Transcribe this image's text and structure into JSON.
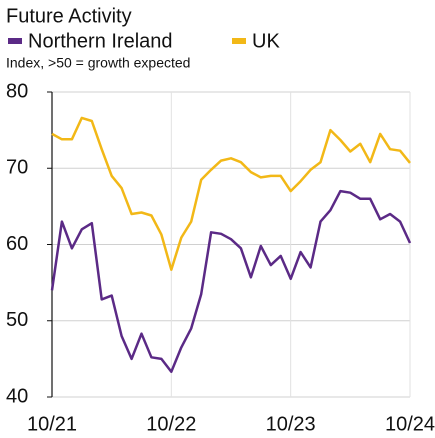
{
  "chart_data": {
    "type": "line",
    "title": "Future Activity",
    "subtitle": "Index, >50 = growth expected",
    "categories": [
      "10/21",
      null,
      null,
      null,
      null,
      null,
      null,
      null,
      null,
      null,
      null,
      null,
      "10/22",
      null,
      null,
      null,
      null,
      null,
      null,
      null,
      null,
      null,
      null,
      null,
      "10/23",
      null,
      null,
      null,
      null,
      null,
      null,
      null,
      null,
      null,
      null,
      null,
      "10/24"
    ],
    "series": [
      {
        "name": "Northern Ireland",
        "color": "#5b2a86",
        "values": [
          54,
          63,
          59.5,
          62,
          62.8,
          52.8,
          53.3,
          48,
          45,
          48.3,
          45.2,
          45,
          43.3,
          46.5,
          49,
          53.5,
          61.6,
          61.4,
          60.7,
          59.5,
          55.7,
          59.8,
          57.3,
          58.5,
          55.5,
          59,
          57,
          63,
          64.5,
          67,
          66.8,
          66,
          66,
          63.3,
          64,
          63,
          60.2
        ]
      },
      {
        "name": "UK",
        "color": "#f2b817",
        "values": [
          74.5,
          73.8,
          73.8,
          76.6,
          76.2,
          72.5,
          69,
          67.4,
          64,
          64.2,
          63.8,
          61.3,
          56.7,
          60.9,
          63,
          68.5,
          69.8,
          71,
          71.3,
          70.8,
          69.5,
          68.8,
          69,
          69,
          67,
          68.3,
          69.8,
          70.8,
          75,
          73.7,
          72.2,
          73.2,
          70.8,
          74.5,
          72.5,
          72.3,
          70.7
        ]
      }
    ],
    "ylim": [
      40,
      80
    ],
    "yticks": [
      40,
      50,
      60,
      70,
      80
    ],
    "grid": true
  }
}
